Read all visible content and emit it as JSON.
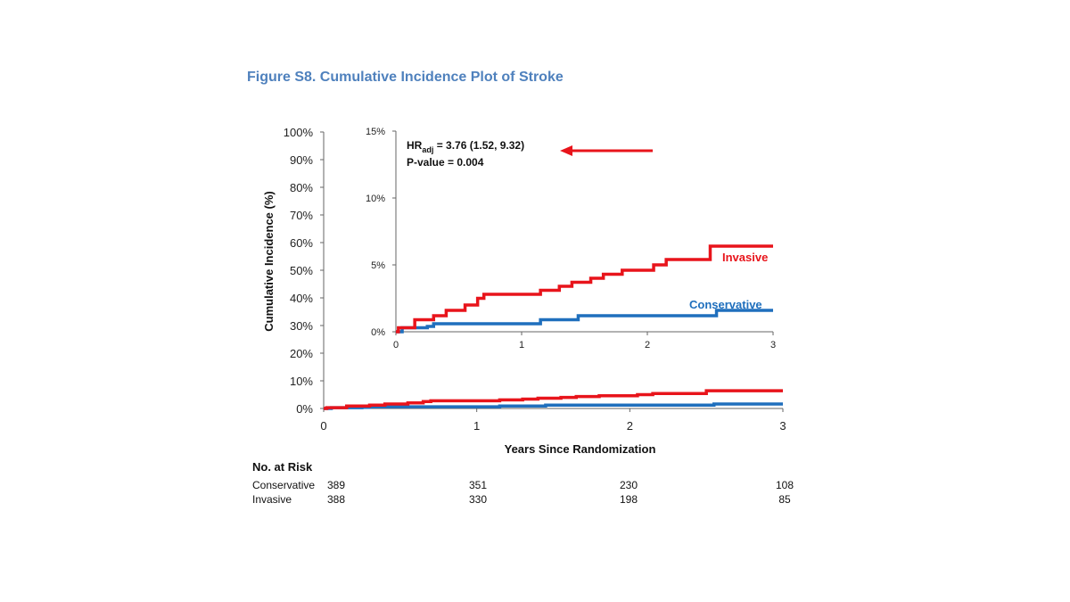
{
  "figure_title": "Figure S8. Cumulative Incidence Plot of Stroke",
  "colors": {
    "title": "#4f81bd",
    "invasive": "#e8141b",
    "conservative": "#1f6fbd",
    "arrow": "#e8141b"
  },
  "chart_data": [
    {
      "type": "line",
      "subtype": "step",
      "title": "",
      "xlabel": "Years Since Randomization",
      "ylabel": "Cumulative Incidence (%)",
      "xlim": [
        0,
        3
      ],
      "ylim": [
        0,
        100
      ],
      "xticks": [
        "0",
        "1",
        "2",
        "3"
      ],
      "yticks": [
        "0%",
        "10%",
        "20%",
        "30%",
        "40%",
        "50%",
        "60%",
        "70%",
        "80%",
        "90%",
        "100%"
      ],
      "series": [
        {
          "name": "Conservative",
          "x": [
            0,
            0.05,
            0.15,
            0.25,
            0.3,
            1.15,
            1.45,
            2.55,
            3.0
          ],
          "y": [
            0,
            0.3,
            0.3,
            0.4,
            0.6,
            0.9,
            1.2,
            1.6,
            1.6
          ]
        },
        {
          "name": "Invasive",
          "x": [
            0,
            0.02,
            0.15,
            0.3,
            0.4,
            0.55,
            0.65,
            0.7,
            1.15,
            1.3,
            1.4,
            1.55,
            1.65,
            1.8,
            2.05,
            2.15,
            2.5,
            3.0
          ],
          "y": [
            0,
            0.3,
            0.9,
            1.2,
            1.6,
            2.0,
            2.5,
            2.8,
            3.1,
            3.4,
            3.7,
            4.0,
            4.3,
            4.6,
            5.0,
            5.4,
            6.4,
            6.4
          ]
        }
      ]
    },
    {
      "type": "line",
      "subtype": "step",
      "title": "",
      "xlabel": "",
      "ylabel": "",
      "xlim": [
        0,
        3
      ],
      "ylim": [
        0,
        15
      ],
      "xticks": [
        "0",
        "1",
        "2",
        "3"
      ],
      "yticks": [
        "0%",
        "5%",
        "10%",
        "15%"
      ],
      "series_labels": {
        "invasive": "Invasive",
        "conservative": "Conservative"
      },
      "annotation": {
        "hr_prefix": "HR",
        "hr_sub": "adj",
        "hr_value": " = 3.76 (1.52, 9.32)",
        "p_value": "P-value = 0.004"
      }
    }
  ],
  "risk_table": {
    "header": "No. at Risk",
    "rows": [
      {
        "label": "Conservative",
        "values": [
          "389",
          "351",
          "230",
          "108"
        ]
      },
      {
        "label": "Invasive",
        "values": [
          "388",
          "330",
          "198",
          "85"
        ]
      }
    ]
  }
}
